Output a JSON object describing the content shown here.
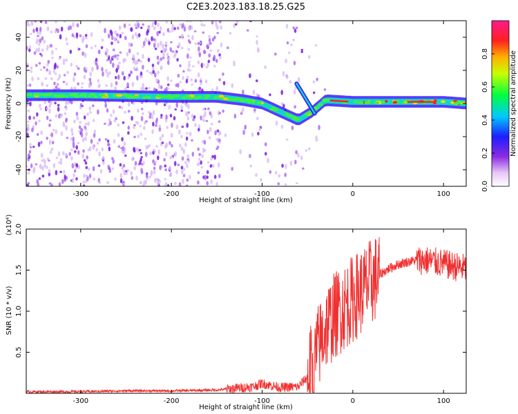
{
  "title": "C2E3.2023.183.18.25.G25",
  "chart_data": [
    {
      "type": "heatmap",
      "xlabel": "Height of straight line (km)",
      "ylabel": "Frequency (Hz)",
      "xlim": [
        -360,
        125
      ],
      "ylim": [
        -50,
        50
      ],
      "xticks": [
        -300,
        -200,
        -100,
        0,
        100
      ],
      "yticks": [
        -40,
        -20,
        0,
        20,
        40
      ],
      "colorbar": {
        "label": "Normalized spectral amplitude",
        "range": [
          0,
          1
        ],
        "ticks": [
          "0.0",
          "0.2",
          "0.4",
          "0.6",
          "0.8"
        ],
        "colormap": "rainbow (white, violet, blue, cyan, green, yellow, red, magenta)"
      },
      "band_center": [
        [
          -360,
          5
        ],
        [
          -300,
          5
        ],
        [
          -200,
          4
        ],
        [
          -150,
          4
        ],
        [
          -120,
          2
        ],
        [
          -100,
          0
        ],
        [
          -80,
          -5
        ],
        [
          -60,
          -10
        ],
        [
          -45,
          -5
        ],
        [
          -30,
          2
        ],
        [
          0,
          1
        ],
        [
          50,
          1
        ],
        [
          100,
          1
        ],
        [
          125,
          0
        ]
      ],
      "grid": false,
      "colors": {
        "band_peak": "#ff2a2a",
        "noise": "#9a3cf0"
      }
    },
    {
      "type": "line",
      "xlabel": "Height of straight line (km)",
      "ylabel": "SNR (10 * v/v)",
      "y_multiplier": "(x10⁴)",
      "xlim": [
        -360,
        125
      ],
      "ylim": [
        0,
        2.0
      ],
      "xticks": [
        -300,
        -200,
        -100,
        0,
        100
      ],
      "yticks": [
        "0.5",
        "1.0",
        "1.5",
        "2.0"
      ],
      "series": [
        {
          "color": "#f03030",
          "x": [
            -360,
            -300,
            -250,
            -200,
            -150,
            -130,
            -110,
            -100,
            -80,
            -60,
            -50,
            -40,
            -30,
            -20,
            -10,
            0,
            10,
            20,
            30,
            40,
            50,
            60,
            70,
            80,
            90,
            100,
            110,
            120,
            125
          ],
          "y": [
            0.02,
            0.02,
            0.03,
            0.03,
            0.04,
            0.06,
            0.08,
            0.12,
            0.07,
            0.08,
            0.2,
            0.5,
            0.8,
            0.95,
            1.05,
            1.15,
            1.25,
            1.35,
            1.45,
            1.52,
            1.57,
            1.6,
            1.62,
            1.62,
            1.6,
            1.58,
            1.55,
            1.53,
            1.52
          ]
        }
      ],
      "grid": false
    }
  ]
}
